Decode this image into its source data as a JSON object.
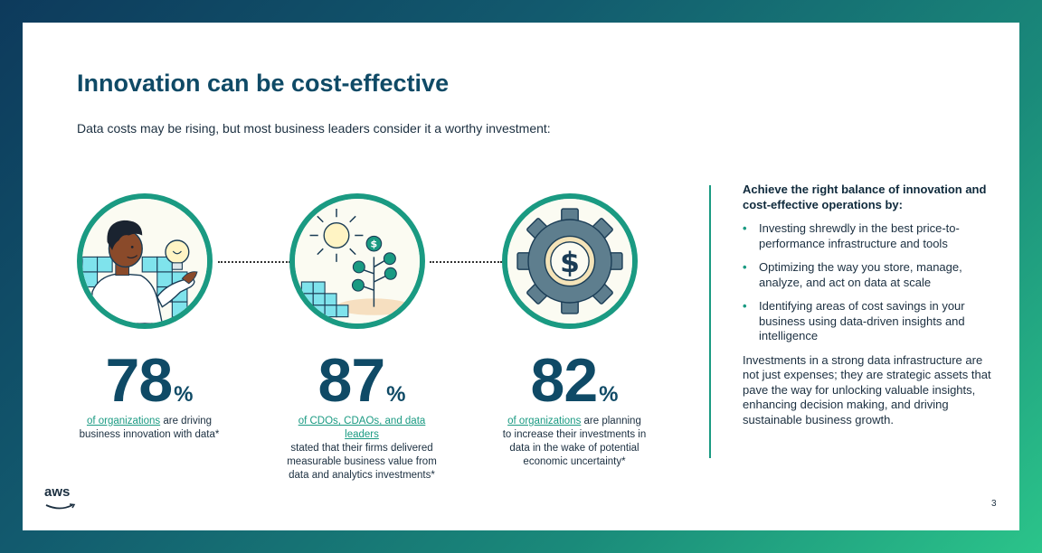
{
  "title": "Innovation can be cost-effective",
  "subtitle": "Data costs may be rising, but most business leaders consider it a worthy investment:",
  "stats": [
    {
      "number": "78",
      "percent_sign": "%",
      "link_text": "of organizations",
      "desc_after": " are driving",
      "desc_rest": "business innovation with data*"
    },
    {
      "number": "87",
      "percent_sign": "%",
      "link_text": "of CDOs, CDAOs, and data leaders",
      "desc_after": "",
      "desc_rest": "stated that their firms delivered measurable business value from data and analytics investments*"
    },
    {
      "number": "82",
      "percent_sign": "%",
      "link_text": "of organizations",
      "desc_after": " are planning",
      "desc_rest": "to increase their investments in data in the wake of potential economic uncertainty*"
    }
  ],
  "sidebar": {
    "heading": "Achieve the right balance of innovation and cost-effective operations by:",
    "bullet_symbol": "•",
    "items": [
      "Investing shrewdly in the best price-to-performance infrastructure and tools",
      "Optimizing the way you store, manage, analyze, and act on data at scale",
      "Identifying areas of cost savings in your business using data-driven insights and intelligence"
    ],
    "footer": "Investments in a strong data infrastructure are not just expenses; they are strategic assets that pave the way for unlocking valuable insights, enhancing decision making, and driving sustainable business growth."
  },
  "logo_text": "aws",
  "page_number": "3",
  "colors": {
    "accent_teal": "#1a9a82",
    "heading_navy": "#0f4a66",
    "body_text": "#1b2f40"
  },
  "icons": [
    "person-lightbulb-icon",
    "sun-plant-growth-icon",
    "gear-dollar-icon",
    "aws-smile-icon"
  ]
}
